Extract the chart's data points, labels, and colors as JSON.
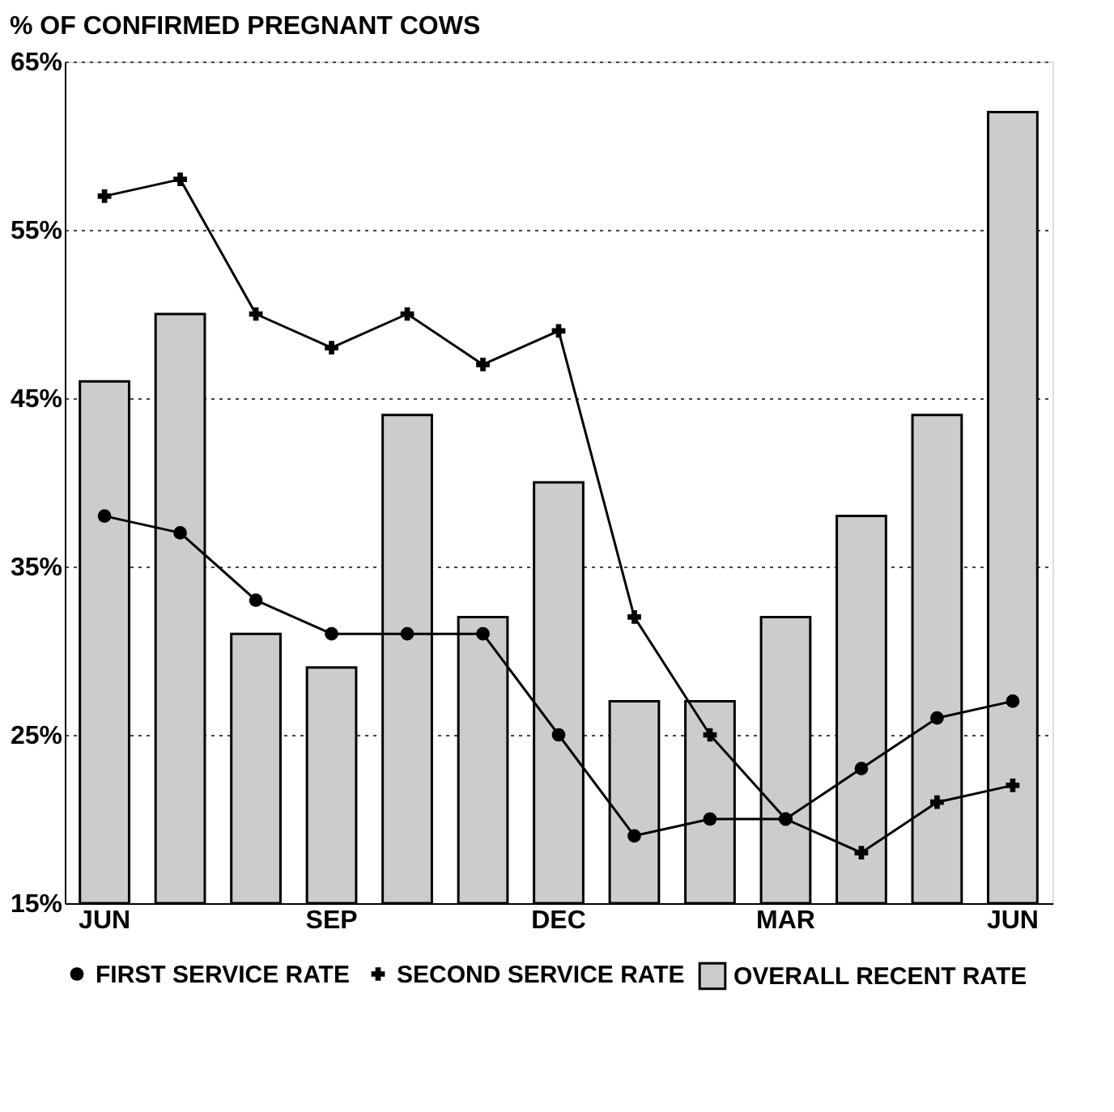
{
  "chart_data": {
    "type": "bar",
    "title": "% OF CONFIRMED PREGNANT COWS",
    "categories": [
      "JUN",
      null,
      null,
      "SEP",
      null,
      null,
      "DEC",
      null,
      null,
      "MAR",
      null,
      null,
      "JUN"
    ],
    "series": [
      {
        "name": "OVERALL RECENT RATE",
        "color": "#cccccc",
        "values": [
          46,
          50,
          31,
          29,
          44,
          32,
          40,
          27,
          27,
          32,
          38,
          44,
          62
        ]
      },
      {
        "name": "FIRST SERVICE RATE",
        "type": "line",
        "color": "#000000",
        "marker": "circle",
        "values": [
          38,
          37,
          33,
          31,
          31,
          31,
          25,
          19,
          20,
          20,
          23,
          26,
          27
        ]
      },
      {
        "name": "SECOND SERVICE RATE",
        "type": "line",
        "color": "#000000",
        "marker": "cross",
        "values": [
          57,
          58,
          50,
          48,
          50,
          47,
          49,
          32,
          25,
          20,
          18,
          21,
          22
        ]
      }
    ],
    "ylim": [
      15,
      65
    ],
    "yticks": [
      {
        "value": 15,
        "label": "15%"
      },
      {
        "value": 25,
        "label": "25%"
      },
      {
        "value": 35,
        "label": "35%"
      },
      {
        "value": 45,
        "label": "45%"
      },
      {
        "value": 55,
        "label": "55%"
      },
      {
        "value": 65,
        "label": "65%"
      }
    ],
    "grid": "y",
    "legend": "bottom"
  }
}
